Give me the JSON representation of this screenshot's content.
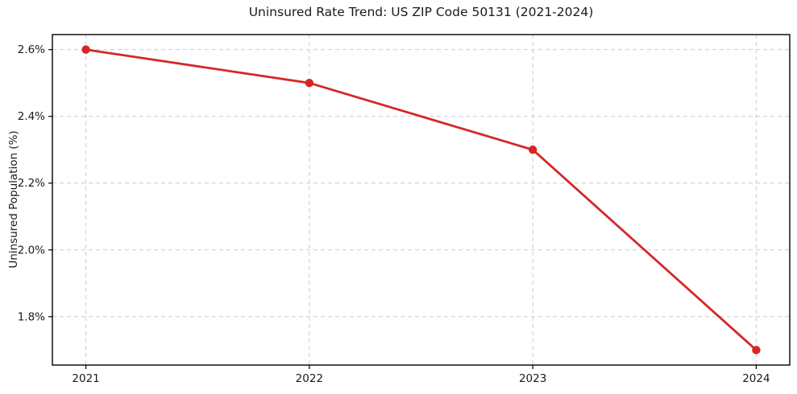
{
  "chart_data": {
    "type": "line",
    "title": "Uninsured Rate Trend: US ZIP Code 50131 (2021-2024)",
    "xlabel": "",
    "ylabel": "Uninsured Population (%)",
    "x": [
      2021,
      2022,
      2023,
      2024
    ],
    "xtick_labels": [
      "2021",
      "2022",
      "2023",
      "2024"
    ],
    "series": [
      {
        "name": "Uninsured Population (%)",
        "values": [
          2.6,
          2.5,
          2.3,
          1.7
        ]
      }
    ],
    "yticks": [
      1.8,
      2.0,
      2.2,
      2.4,
      2.6
    ],
    "ytick_labels": [
      "1.8%",
      "2.0%",
      "2.2%",
      "2.4%",
      "2.6%"
    ],
    "ylim": [
      1.655,
      2.645
    ],
    "grid": true,
    "legend": false,
    "line_color": "#d62728",
    "marker": "circle",
    "background_color": "#ffffff"
  }
}
